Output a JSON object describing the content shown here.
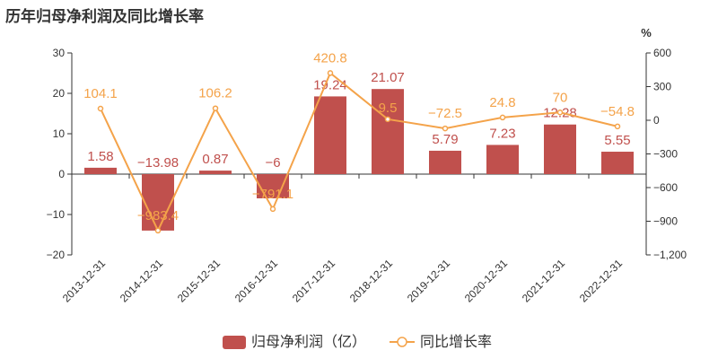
{
  "title": "历年归母净利润及同比增长率",
  "chart_data": {
    "type": "bar",
    "categories": [
      "2013-12-31",
      "2014-12-31",
      "2015-12-31",
      "2016-12-31",
      "2017-12-31",
      "2018-12-31",
      "2019-12-31",
      "2020-12-31",
      "2021-12-31",
      "2022-12-31"
    ],
    "series": [
      {
        "name": "归母净利润（亿）",
        "type": "bar",
        "axis": "left",
        "color": "#c0504d",
        "values": [
          1.58,
          -13.98,
          0.87,
          -6,
          19.24,
          21.07,
          5.79,
          7.23,
          12.28,
          5.55
        ],
        "labels": [
          "1.58",
          "−13.98",
          "0.87",
          "−6",
          "19.24",
          "21.07",
          "5.79",
          "7.23",
          "12.28",
          "5.55"
        ]
      },
      {
        "name": "同比增长率",
        "type": "line",
        "axis": "right",
        "color": "#f4a34a",
        "values": [
          104.1,
          -983.4,
          106.2,
          -791.1,
          420.8,
          9.5,
          -72.5,
          24.8,
          70,
          -54.8
        ],
        "labels": [
          "104.1",
          "−983.4",
          "106.2",
          "−791.1",
          "420.8",
          "9.5",
          "−72.5",
          "24.8",
          "70",
          "−54.8"
        ]
      }
    ],
    "y_left": {
      "ylim": [
        -20,
        30
      ],
      "ticks": [
        30,
        20,
        10,
        0,
        -10,
        -20
      ],
      "tick_labels": [
        "30",
        "20",
        "10",
        "0",
        "−10",
        "−20"
      ]
    },
    "y_right": {
      "unit": "%",
      "ylim": [
        -1200,
        600
      ],
      "ticks": [
        600,
        300,
        0,
        -300,
        -600,
        -900,
        -1200
      ],
      "tick_labels": [
        "600",
        "300",
        "0",
        "−300",
        "−600",
        "−900",
        "−1,200"
      ]
    },
    "grid": false,
    "legend": "bottom"
  }
}
